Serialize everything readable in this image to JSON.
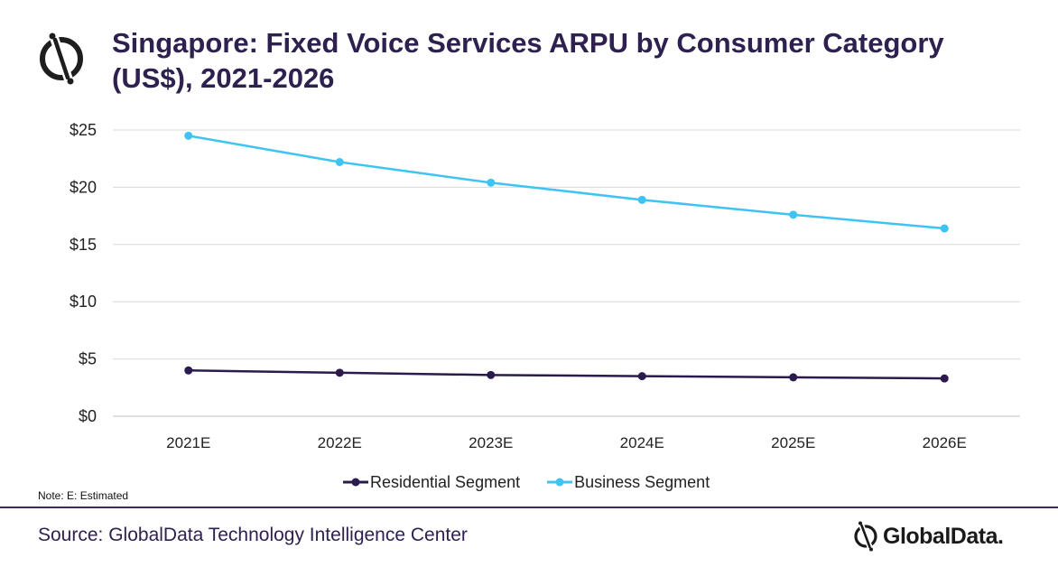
{
  "header": {
    "title": "Singapore: Fixed Voice Services ARPU by Consumer Category (US$), 2021-2026",
    "logo_icon": "globaldata-logo-icon"
  },
  "colors": {
    "title": "#2e2150",
    "residential": "#2b1a4d",
    "business": "#3ec3f2",
    "grid": "#d9d9d9",
    "divider": "#3a2a5c",
    "source": "#2e2150"
  },
  "chart_data": {
    "type": "line",
    "x": [
      "2021E",
      "2022E",
      "2023E",
      "2024E",
      "2025E",
      "2026E"
    ],
    "y_ticks": [
      "$0",
      "$5",
      "$10",
      "$15",
      "$20",
      "$25"
    ],
    "ylim": [
      0,
      25
    ],
    "grid": true,
    "legend_position": "bottom",
    "series": [
      {
        "name": "Residential Segment",
        "values": [
          4.0,
          3.8,
          3.6,
          3.5,
          3.4,
          3.3
        ]
      },
      {
        "name": "Business Segment",
        "values": [
          24.5,
          22.2,
          20.4,
          18.9,
          17.6,
          16.4
        ]
      }
    ]
  },
  "legend": {
    "items": [
      "Residential Segment",
      "Business Segment"
    ]
  },
  "note": "Note:  E: Estimated",
  "footer": {
    "source": "Source: GlobalData Technology Intelligence Center",
    "brand": "GlobalData."
  }
}
